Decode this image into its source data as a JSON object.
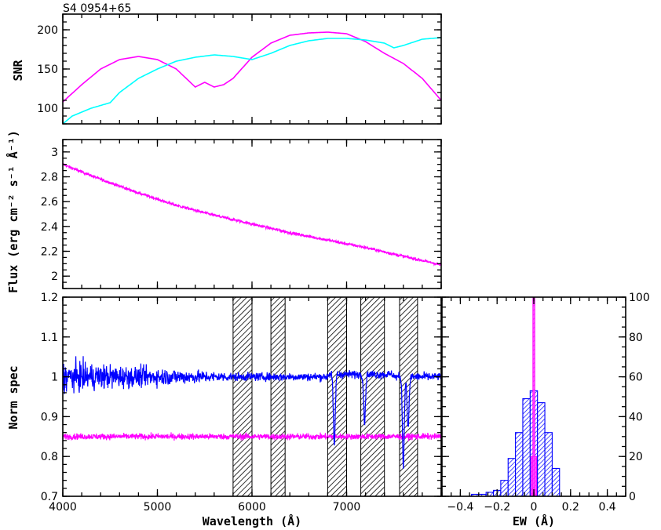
{
  "title": "S4 0954+65",
  "colors": {
    "magenta": "#ff00ff",
    "cyan": "#00ffff",
    "blue": "#0000ff",
    "hatch": "#000000"
  },
  "chart_data": [
    {
      "id": "snr",
      "type": "line",
      "ylabel": "SNR",
      "xlim": [
        4000,
        8000
      ],
      "ylim": [
        80,
        220
      ],
      "yticks": [
        "100",
        "150",
        "200"
      ],
      "series": [
        {
          "color": "magenta",
          "x": [
            4000,
            4200,
            4400,
            4600,
            4800,
            5000,
            5200,
            5400,
            5500,
            5600,
            5700,
            5800,
            6000,
            6200,
            6400,
            6600,
            6800,
            7000,
            7200,
            7400,
            7600,
            7800,
            8000
          ],
          "y": [
            108,
            130,
            150,
            162,
            166,
            162,
            150,
            127,
            133,
            127,
            130,
            138,
            165,
            183,
            193,
            196,
            197,
            195,
            185,
            170,
            157,
            138,
            110
          ]
        },
        {
          "color": "cyan",
          "x": [
            4000,
            4100,
            4300,
            4500,
            4600,
            4800,
            5000,
            5200,
            5400,
            5600,
            5800,
            6000,
            6200,
            6400,
            6600,
            6800,
            7000,
            7200,
            7400,
            7500,
            7600,
            7800,
            8000
          ],
          "y": [
            80,
            90,
            100,
            107,
            120,
            138,
            150,
            160,
            165,
            168,
            166,
            162,
            170,
            180,
            186,
            189,
            189,
            187,
            183,
            177,
            180,
            188,
            190
          ]
        }
      ]
    },
    {
      "id": "flux",
      "type": "line",
      "ylabel": "Flux (erg cm⁻² s⁻¹ Å⁻¹)",
      "xlim": [
        4000,
        8000
      ],
      "ylim": [
        1.9,
        3.1
      ],
      "yticks": [
        "2",
        "2.2",
        "2.4",
        "2.6",
        "2.8",
        "3"
      ],
      "series": [
        {
          "color": "magenta",
          "x": [
            4000,
            4400,
            4800,
            5200,
            5600,
            6000,
            6400,
            6800,
            7200,
            7600,
            8000
          ],
          "y": [
            2.9,
            2.78,
            2.67,
            2.57,
            2.49,
            2.42,
            2.35,
            2.29,
            2.23,
            2.16,
            2.09
          ]
        }
      ]
    },
    {
      "id": "normspec",
      "type": "line",
      "xlabel": "Wavelength (Å)",
      "ylabel": "Norm spec",
      "xlim": [
        4000,
        8000
      ],
      "ylim": [
        0.7,
        1.2
      ],
      "xticks": [
        "4000",
        "5000",
        "6000",
        "7000"
      ],
      "yticks": [
        "0.7",
        "0.8",
        "0.9",
        "1",
        "1.1",
        "1.2"
      ],
      "masked_regions": [
        [
          5800,
          6000
        ],
        [
          6200,
          6350
        ],
        [
          6800,
          7000
        ],
        [
          7150,
          7400
        ],
        [
          7560,
          7750
        ]
      ],
      "series": [
        {
          "color": "blue",
          "baseline": 1.0,
          "absorption_lines": [
            [
              6870,
              0.82
            ],
            [
              7190,
              0.88
            ],
            [
              7600,
              0.78
            ],
            [
              7650,
              0.87
            ]
          ]
        },
        {
          "color": "magenta",
          "baseline": 0.85
        }
      ]
    },
    {
      "id": "ew_hist",
      "type": "bar",
      "xlabel": "EW (Å)",
      "xlim": [
        -0.5,
        0.5
      ],
      "ylim": [
        0,
        100
      ],
      "xticks": [
        "−0.4",
        "−0.2",
        "0",
        "0.2",
        "0.4"
      ],
      "yticks": [
        "0",
        "20",
        "40",
        "60",
        "80",
        "100"
      ],
      "series": [
        {
          "color": "blue",
          "fill": "hatched",
          "x": [
            -0.32,
            -0.28,
            -0.24,
            -0.2,
            -0.16,
            -0.12,
            -0.08,
            -0.04,
            0.0,
            0.04,
            0.08,
            0.12
          ],
          "y": [
            1,
            1,
            2,
            3,
            8,
            19,
            32,
            49,
            53,
            47,
            32,
            14
          ]
        },
        {
          "color": "magenta",
          "fill": "hatched",
          "x": [
            -0.01,
            0.0,
            0.01
          ],
          "y": [
            20,
            100,
            20
          ]
        }
      ]
    }
  ]
}
